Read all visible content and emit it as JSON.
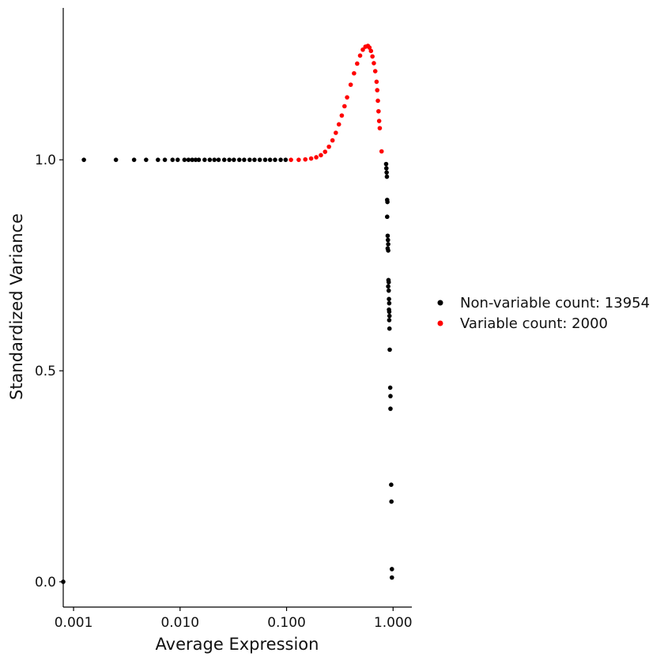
{
  "chart_data": {
    "type": "scatter",
    "xlabel": "Average Expression",
    "ylabel": "Standardized Variance",
    "x_scale": "log10",
    "xlim": [
      0.0008,
      1.5
    ],
    "ylim": [
      -0.06,
      1.36
    ],
    "x_ticks": [
      0.001,
      0.01,
      0.1,
      1.0
    ],
    "x_tick_labels": [
      "0.001",
      "0.010",
      "0.100",
      "1.000"
    ],
    "y_ticks": [
      0.0,
      0.5,
      1.0
    ],
    "y_tick_labels": [
      "0.0",
      "0.5",
      "1.0"
    ],
    "grid": false,
    "legend_position": "right",
    "series": [
      {
        "name": "Non-variable count: 13954",
        "color": "#000000",
        "points": [
          [
            0.0008,
            0.0
          ],
          [
            0.00125,
            1.0
          ],
          [
            0.0025,
            1.0
          ],
          [
            0.0037,
            1.0
          ],
          [
            0.0048,
            1.0
          ],
          [
            0.0062,
            1.0
          ],
          [
            0.0072,
            1.0
          ],
          [
            0.0085,
            1.0
          ],
          [
            0.0095,
            1.0
          ],
          [
            0.011,
            1.0
          ],
          [
            0.012,
            1.0
          ],
          [
            0.013,
            1.0
          ],
          [
            0.014,
            1.0
          ],
          [
            0.015,
            1.0
          ],
          [
            0.017,
            1.0
          ],
          [
            0.019,
            1.0
          ],
          [
            0.021,
            1.0
          ],
          [
            0.023,
            1.0
          ],
          [
            0.026,
            1.0
          ],
          [
            0.029,
            1.0
          ],
          [
            0.032,
            1.0
          ],
          [
            0.036,
            1.0
          ],
          [
            0.04,
            1.0
          ],
          [
            0.045,
            1.0
          ],
          [
            0.05,
            1.0
          ],
          [
            0.056,
            1.0
          ],
          [
            0.063,
            1.0
          ],
          [
            0.07,
            1.0
          ],
          [
            0.078,
            1.0
          ],
          [
            0.088,
            1.0
          ],
          [
            0.098,
            1.0
          ],
          [
            0.86,
            0.99
          ],
          [
            0.865,
            0.98
          ],
          [
            0.87,
            0.97
          ],
          [
            0.875,
            0.96
          ],
          [
            0.88,
            0.905
          ],
          [
            0.885,
            0.9
          ],
          [
            0.88,
            0.865
          ],
          [
            0.89,
            0.82
          ],
          [
            0.895,
            0.81
          ],
          [
            0.9,
            0.8
          ],
          [
            0.89,
            0.79
          ],
          [
            0.9,
            0.785
          ],
          [
            0.905,
            0.715
          ],
          [
            0.91,
            0.71
          ],
          [
            0.9,
            0.7
          ],
          [
            0.91,
            0.69
          ],
          [
            0.915,
            0.67
          ],
          [
            0.92,
            0.66
          ],
          [
            0.915,
            0.645
          ],
          [
            0.92,
            0.64
          ],
          [
            0.925,
            0.63
          ],
          [
            0.92,
            0.62
          ],
          [
            0.925,
            0.6
          ],
          [
            0.93,
            0.55
          ],
          [
            0.94,
            0.46
          ],
          [
            0.945,
            0.44
          ],
          [
            0.945,
            0.41
          ],
          [
            0.96,
            0.23
          ],
          [
            0.965,
            0.19
          ],
          [
            0.975,
            0.03
          ],
          [
            0.975,
            0.01
          ]
        ]
      },
      {
        "name": "Variable count: 2000",
        "color": "#ff0000",
        "points": [
          [
            0.11,
            1.0
          ],
          [
            0.13,
            1.0
          ],
          [
            0.15,
            1.001
          ],
          [
            0.17,
            1.003
          ],
          [
            0.19,
            1.006
          ],
          [
            0.21,
            1.011
          ],
          [
            0.23,
            1.019
          ],
          [
            0.25,
            1.031
          ],
          [
            0.27,
            1.046
          ],
          [
            0.29,
            1.064
          ],
          [
            0.31,
            1.084
          ],
          [
            0.33,
            1.105
          ],
          [
            0.35,
            1.127
          ],
          [
            0.37,
            1.148
          ],
          [
            0.4,
            1.178
          ],
          [
            0.43,
            1.205
          ],
          [
            0.46,
            1.228
          ],
          [
            0.49,
            1.247
          ],
          [
            0.52,
            1.261
          ],
          [
            0.55,
            1.268
          ],
          [
            0.58,
            1.27
          ],
          [
            0.6,
            1.266
          ],
          [
            0.62,
            1.258
          ],
          [
            0.64,
            1.245
          ],
          [
            0.66,
            1.229
          ],
          [
            0.68,
            1.21
          ],
          [
            0.7,
            1.185
          ],
          [
            0.71,
            1.165
          ],
          [
            0.72,
            1.14
          ],
          [
            0.73,
            1.115
          ],
          [
            0.74,
            1.092
          ],
          [
            0.75,
            1.075
          ],
          [
            0.78,
            1.02
          ]
        ]
      }
    ]
  }
}
